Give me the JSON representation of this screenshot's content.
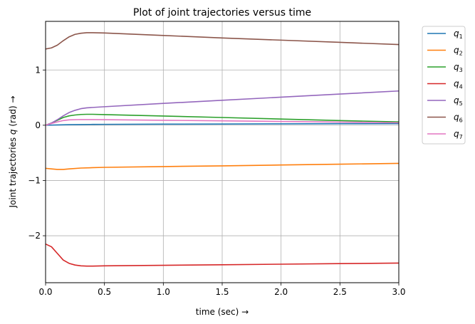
{
  "chart_data": {
    "type": "line",
    "title": "Plot of joint trajectories versus time",
    "xlabel": "time (sec)  →",
    "ylabel_prefix": "Joint trajectories ",
    "ylabel_var": "q",
    "ylabel_suffix": " (rad)  →",
    "xlim": [
      0,
      3
    ],
    "ylim": [
      -2.85,
      1.88
    ],
    "xticks": [
      0,
      0.5,
      1,
      1.5,
      2,
      2.5,
      3
    ],
    "xtick_labels": [
      "0.0",
      "0.5",
      "1.0",
      "1.5",
      "2.0",
      "2.5",
      "3.0"
    ],
    "yticks": [
      -2,
      -1,
      0,
      1
    ],
    "ytick_labels": [
      "−2",
      "−1",
      "0",
      "1"
    ],
    "grid": true,
    "legend_position": "outside-top-right",
    "series": [
      {
        "name": "q",
        "sub": "1",
        "color": "#1f77b4",
        "x": [
          0,
          0.1,
          0.2,
          0.3,
          0.4,
          0.5,
          1.0,
          1.5,
          2.0,
          2.5,
          3.0
        ],
        "y": [
          0.0,
          0.005,
          0.01,
          0.012,
          0.015,
          0.016,
          0.02,
          0.022,
          0.025,
          0.028,
          0.03
        ]
      },
      {
        "name": "q",
        "sub": "2",
        "color": "#ff7f0e",
        "x": [
          0,
          0.05,
          0.1,
          0.15,
          0.2,
          0.3,
          0.4,
          0.5,
          1.0,
          1.5,
          2.0,
          2.5,
          3.0
        ],
        "y": [
          -0.78,
          -0.79,
          -0.8,
          -0.8,
          -0.79,
          -0.775,
          -0.768,
          -0.762,
          -0.748,
          -0.735,
          -0.72,
          -0.705,
          -0.69
        ]
      },
      {
        "name": "q",
        "sub": "3",
        "color": "#2ca02c",
        "x": [
          0,
          0.05,
          0.1,
          0.15,
          0.2,
          0.25,
          0.3,
          0.35,
          0.4,
          0.5,
          1.0,
          1.5,
          2.0,
          2.5,
          3.0
        ],
        "y": [
          0.0,
          0.04,
          0.09,
          0.14,
          0.17,
          0.185,
          0.195,
          0.198,
          0.198,
          0.193,
          0.167,
          0.14,
          0.112,
          0.085,
          0.06
        ]
      },
      {
        "name": "q",
        "sub": "4",
        "color": "#d62728",
        "x": [
          0,
          0.05,
          0.1,
          0.15,
          0.2,
          0.25,
          0.3,
          0.35,
          0.4,
          0.5,
          1.0,
          1.5,
          2.0,
          2.5,
          3.0
        ],
        "y": [
          -2.15,
          -2.2,
          -2.32,
          -2.44,
          -2.5,
          -2.53,
          -2.545,
          -2.55,
          -2.55,
          -2.545,
          -2.535,
          -2.525,
          -2.515,
          -2.505,
          -2.495
        ]
      },
      {
        "name": "q",
        "sub": "5",
        "color": "#9467bd",
        "x": [
          0,
          0.05,
          0.1,
          0.15,
          0.2,
          0.25,
          0.3,
          0.35,
          0.4,
          0.5,
          1.0,
          1.5,
          2.0,
          2.5,
          3.0
        ],
        "y": [
          0.0,
          0.04,
          0.1,
          0.17,
          0.23,
          0.27,
          0.3,
          0.315,
          0.322,
          0.335,
          0.395,
          0.452,
          0.508,
          0.565,
          0.62
        ]
      },
      {
        "name": "q",
        "sub": "6",
        "color": "#8c564b",
        "x": [
          0,
          0.05,
          0.1,
          0.15,
          0.2,
          0.25,
          0.3,
          0.35,
          0.4,
          0.5,
          1.0,
          1.5,
          2.0,
          2.5,
          3.0
        ],
        "y": [
          1.38,
          1.4,
          1.45,
          1.53,
          1.6,
          1.645,
          1.665,
          1.675,
          1.675,
          1.67,
          1.625,
          1.58,
          1.54,
          1.5,
          1.46
        ]
      },
      {
        "name": "q",
        "sub": "7",
        "color": "#e377c2",
        "x": [
          0,
          0.05,
          0.1,
          0.15,
          0.2,
          0.3,
          0.4,
          0.5,
          1.0,
          1.5,
          2.0,
          2.5,
          3.0
        ],
        "y": [
          0.0,
          0.03,
          0.06,
          0.085,
          0.097,
          0.103,
          0.102,
          0.1,
          0.09,
          0.08,
          0.068,
          0.057,
          0.045
        ]
      }
    ]
  }
}
